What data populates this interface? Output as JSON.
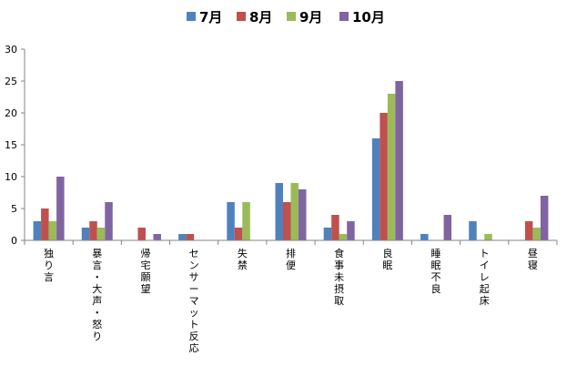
{
  "chart_data": {
    "type": "bar",
    "title": "",
    "xlabel": "",
    "ylabel": "",
    "ylim": [
      0,
      30
    ],
    "yticks": [
      0,
      5,
      10,
      15,
      20,
      25,
      30
    ],
    "grid": false,
    "legend_position": "top",
    "categories": [
      "独り言",
      "暴言・大声・怒り",
      "帰宅願望",
      "センサーマット反応",
      "失禁",
      "排便",
      "食事未摂取",
      "良眠",
      "睡眠不良",
      "トイレ起床",
      "昼寝"
    ],
    "series": [
      {
        "name": "7月",
        "color": "#4F81BD",
        "values": [
          3,
          2,
          0,
          1,
          6,
          9,
          2,
          16,
          1,
          3,
          0
        ]
      },
      {
        "name": "8月",
        "color": "#C0504D",
        "values": [
          5,
          3,
          2,
          1,
          2,
          6,
          4,
          20,
          0,
          0,
          3
        ]
      },
      {
        "name": "9月",
        "color": "#9BBB59",
        "values": [
          3,
          2,
          0,
          0,
          6,
          9,
          1,
          23,
          0,
          1,
          2
        ]
      },
      {
        "name": "10月",
        "color": "#8064A2",
        "values": [
          10,
          6,
          1,
          0,
          0,
          8,
          3,
          25,
          4,
          0,
          7
        ]
      }
    ]
  }
}
